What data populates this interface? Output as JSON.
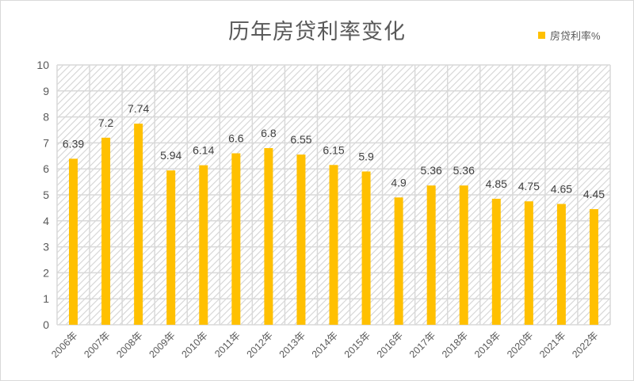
{
  "chart_data": {
    "type": "bar",
    "title": "历年房贷利率变化",
    "xlabel": "",
    "ylabel": "",
    "ylim": [
      0,
      10
    ],
    "yticks": [
      0,
      1,
      2,
      3,
      4,
      5,
      6,
      7,
      8,
      9,
      10
    ],
    "grid": true,
    "legend_position": "top-right",
    "categories": [
      "2006年",
      "2007年",
      "2008年",
      "2009年",
      "2010年",
      "2011年",
      "2012年",
      "2013年",
      "2014年",
      "2015年",
      "2016年",
      "2017年",
      "2018年",
      "2019年",
      "2020年",
      "2021年",
      "2022年"
    ],
    "series": [
      {
        "name": "房贷利率%",
        "color": "#FFC000",
        "values": [
          6.39,
          7.2,
          7.74,
          5.94,
          6.14,
          6.6,
          6.8,
          6.55,
          6.15,
          5.9,
          4.9,
          5.36,
          5.36,
          4.85,
          4.75,
          4.65,
          4.45
        ],
        "data_labels": [
          "6.39",
          "7.2",
          "7.74",
          "5.94",
          "6.14",
          "6.6",
          "6.8",
          "6.55",
          "6.15",
          "5.9",
          "4.9",
          "5.36",
          "5.36",
          "4.85",
          "4.75",
          "4.65",
          "4.45"
        ]
      }
    ]
  },
  "legend": {
    "label": "房贷利率%",
    "color": "#FFC000"
  },
  "colors": {
    "bar": "#FFC000",
    "grid": "#d9d9d9",
    "hatch": "#d0d0d0",
    "text": "#595959"
  }
}
